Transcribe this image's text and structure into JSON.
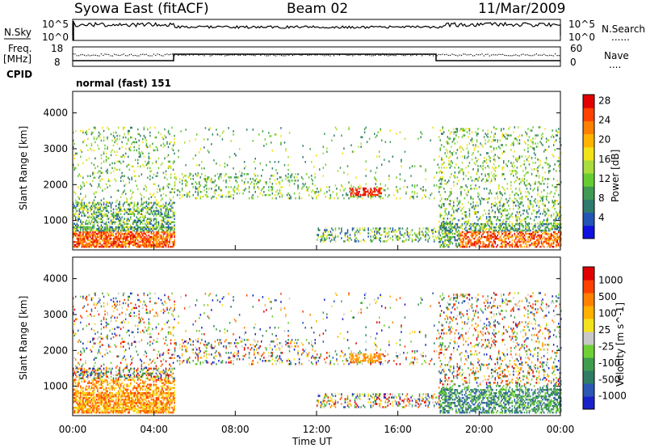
{
  "header": {
    "station": "Syowa East (fitACF)",
    "beam": "Beam 02",
    "date": "11/Mar/2009"
  },
  "strip_panels": {
    "nsky_label": "N.Sky",
    "nsearch_label": "N.Search",
    "nsearch_marker": "......",
    "counts_top_tick": "10^5",
    "counts_bottom_tick": "10^0",
    "freq_label": "Freq.",
    "freq_unit": "[MHz]",
    "freq_ticks": [
      "18",
      "8"
    ],
    "nave_label": "Nave",
    "nave_marker": "....",
    "nave_ticks": [
      "60",
      "0"
    ],
    "cpid_label": "CPID",
    "cpid_text": "normal (fast) 151"
  },
  "chart_data": [
    {
      "type": "heatmap",
      "name": "power",
      "ylabel": "Slant Range [km]",
      "ylim": [
        180,
        4600
      ],
      "yticks": [
        1000,
        2000,
        3000,
        4000
      ],
      "xlim": [
        0,
        24
      ],
      "colorbar": {
        "label": "Power [dB]",
        "ticks": [
          "4",
          "8",
          "12",
          "16",
          "20",
          "24",
          "28"
        ],
        "colors": [
          "#1010e0",
          "#2255b5",
          "#2f7b6e",
          "#3f9a52",
          "#66cc33",
          "#a9dc3c",
          "#f2e21a",
          "#ffb300",
          "#ff7f00",
          "#ff4000",
          "#e00000"
        ]
      }
    },
    {
      "type": "heatmap",
      "name": "velocity",
      "ylabel": "Slant Range [km]",
      "ylim": [
        180,
        4600
      ],
      "yticks": [
        1000,
        2000,
        3000,
        4000
      ],
      "xlim": [
        0,
        24
      ],
      "xticks": [
        "00:00",
        "04:00",
        "08:00",
        "12:00",
        "16:00",
        "20:00",
        "00:00"
      ],
      "xlabel": "Time UT",
      "colorbar": {
        "label": "Velocity [m s^-1]",
        "ticks": [
          "1000",
          "500",
          "100",
          "25",
          "-25",
          "-100",
          "-500",
          "-1000"
        ],
        "colors": [
          "#1822c8",
          "#2c57b4",
          "#2f7c64",
          "#3f9e4e",
          "#6fd036",
          "#c8c8c8",
          "#f4e21e",
          "#ffb000",
          "#ff8000",
          "#ff4000",
          "#e00000"
        ]
      }
    }
  ]
}
